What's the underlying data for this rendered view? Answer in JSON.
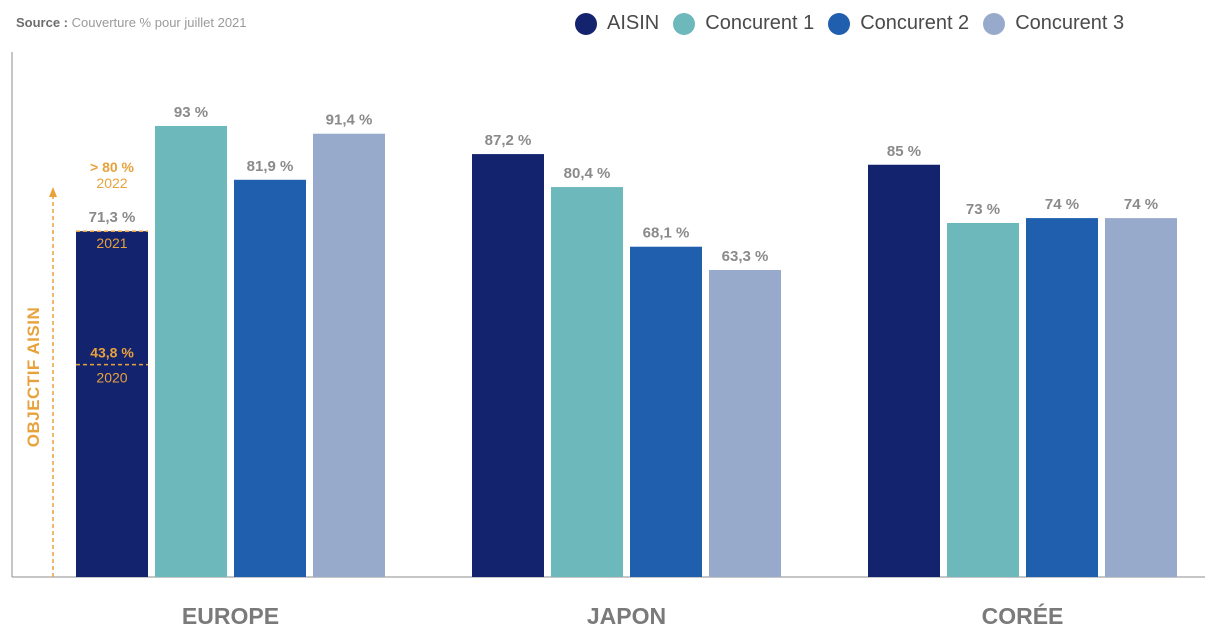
{
  "source": {
    "label": "Source :",
    "text": "Couverture % pour juillet 2021"
  },
  "chart_data": {
    "type": "bar",
    "categories": [
      "EUROPE",
      "JAPON",
      "CORÉE"
    ],
    "ylim": [
      0,
      100
    ],
    "grid": false,
    "legend_position": "top-right",
    "series": [
      {
        "name": "AISIN",
        "color": "#13236e",
        "values": [
          71.3,
          87.2,
          85
        ],
        "labels": [
          "71,3 %",
          "87,2 %",
          "85 %"
        ]
      },
      {
        "name": "Concurent 1",
        "color": "#6cb8bb",
        "values": [
          93,
          80.4,
          73
        ],
        "labels": [
          "93 %",
          "80,4 %",
          "73 %"
        ]
      },
      {
        "name": "Concurent 2",
        "color": "#1f5fae",
        "values": [
          81.9,
          68.1,
          74
        ],
        "labels": [
          "81,9 %",
          "68,1 %",
          "74 %"
        ]
      },
      {
        "name": "Concurent 3",
        "color": "#98aacb",
        "values": [
          91.4,
          63.3,
          74
        ],
        "labels": [
          "91,4 %",
          "63,3 %",
          "74 %"
        ]
      }
    ],
    "objective": {
      "label": "OBJECTIF AISIN",
      "color": "#e8a23c",
      "category": "EUROPE",
      "markers": [
        {
          "year": "2020",
          "value": 43.8,
          "label": "43,8 %"
        },
        {
          "year": "2021",
          "value": 71.3,
          "label": ""
        },
        {
          "year": "2022",
          "value": 80,
          "label": "> 80 %"
        }
      ]
    }
  }
}
